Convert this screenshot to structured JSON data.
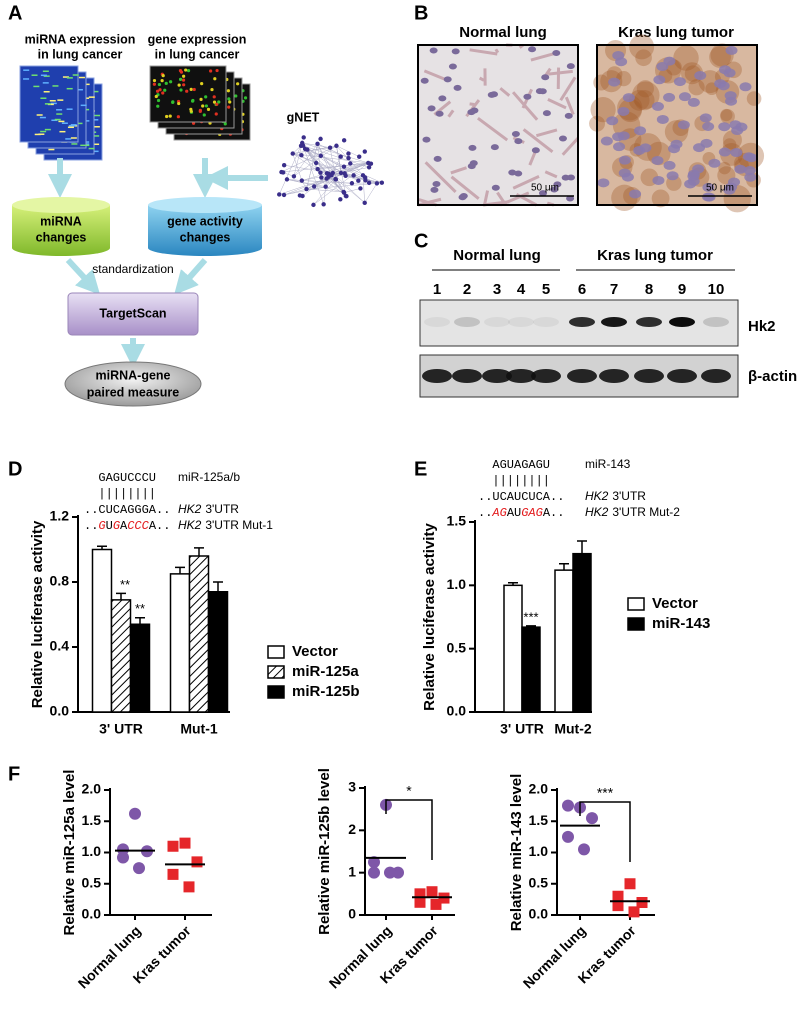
{
  "panels": [
    "A",
    "B",
    "C",
    "D",
    "E",
    "F"
  ],
  "diagram": {
    "mirna_data": [
      "miRNA expression",
      "in lung cancer"
    ],
    "gene_data": [
      "gene expression",
      "in lung cancer"
    ],
    "network": "gNET",
    "mirna_changes": [
      "miRNA",
      "changes"
    ],
    "gene_activity": [
      "gene activity",
      "changes"
    ],
    "step": "standardization",
    "tool": "TargetScan",
    "output": [
      "miRNA-gene",
      "paired measure"
    ]
  },
  "histology": {
    "normal": "Normal lung",
    "tumor": "Kras lung tumor",
    "scale_bar": "50 μm"
  },
  "blot": {
    "groups": [
      "Normal lung",
      "Kras lung tumor"
    ],
    "lanes": [
      "1",
      "2",
      "3",
      "4",
      "5",
      "6",
      "7",
      "8",
      "9",
      "10"
    ],
    "targets": [
      "Hk2",
      "β-actin"
    ]
  },
  "chart_data": [
    {
      "type": "bar",
      "alignment": {
        "mirna": "GAGUCCCU",
        "mirna_name": "miR-125a/b",
        "pairing": "||||||||",
        "utr": "..CUCAGGGA..",
        "gene": "HK2",
        "utr_name": "3'UTR",
        "mutant": [
          {
            "text": "..",
            "color": "#000000"
          },
          {
            "text": "G",
            "color": "#e31a1c"
          },
          {
            "text": "U",
            "color": "#000000"
          },
          {
            "text": "G",
            "color": "#e31a1c"
          },
          {
            "text": "A",
            "color": "#000000"
          },
          {
            "text": "CCC",
            "color": "#e31a1c"
          },
          {
            "text": "A..",
            "color": "#000000"
          }
        ],
        "mutant_name": "3'UTR Mut-1"
      },
      "y_label": "Relative luciferase activity",
      "categories": [
        "3' UTR",
        "Mut-1"
      ],
      "series": [
        {
          "name": "Vector",
          "fill": "#ffffff",
          "values": [
            1.0,
            0.85
          ],
          "errors": [
            0.02,
            0.04
          ],
          "significance": [
            null,
            null
          ]
        },
        {
          "name": "miR-125a",
          "fill": "hatch",
          "values": [
            0.69,
            0.96
          ],
          "errors": [
            0.04,
            0.05
          ],
          "significance": [
            "**",
            null
          ]
        },
        {
          "name": "miR-125b",
          "fill": "#000000",
          "values": [
            0.54,
            0.74
          ],
          "errors": [
            0.04,
            0.06
          ],
          "significance": [
            "**",
            null
          ]
        }
      ],
      "ylim": [
        0,
        1.2
      ],
      "yticks": [
        {
          "value": 0,
          "label": "0.0"
        },
        0.4,
        0.8,
        1.2
      ]
    },
    {
      "type": "bar",
      "alignment": {
        "mirna": "AGUAGAGU",
        "mirna_name": "miR-143",
        "pairing": "||||||||",
        "utr": "..UCAUCUCA..",
        "gene": "HK2",
        "utr_name": "3'UTR",
        "mutant": [
          {
            "text": "..",
            "color": "#000000"
          },
          {
            "text": "AG",
            "color": "#e31a1c"
          },
          {
            "text": "AU",
            "color": "#000000"
          },
          {
            "text": "GAG",
            "color": "#e31a1c"
          },
          {
            "text": "A..",
            "color": "#000000"
          }
        ],
        "mutant_name": "3'UTR Mut-2"
      },
      "y_label": "Relative luciferase activity",
      "categories": [
        "3' UTR",
        "Mut-2"
      ],
      "series": [
        {
          "name": "Vector",
          "fill": "#ffffff",
          "values": [
            1.0,
            1.12
          ],
          "errors": [
            0.02,
            0.05
          ],
          "significance": [
            null,
            null
          ]
        },
        {
          "name": "miR-143",
          "fill": "#000000",
          "values": [
            0.67,
            1.25
          ],
          "errors": [
            0.01,
            0.1
          ],
          "significance": [
            "***",
            null
          ]
        }
      ],
      "ylim": [
        0,
        1.5
      ],
      "yticks": [
        {
          "value": 0,
          "label": "0.0"
        },
        0.5,
        {
          "value": 1,
          "label": "1.0"
        },
        1.5
      ]
    },
    {
      "type": "scatter",
      "y_label": "Relative miR-125a level",
      "categories": [
        "Normal lung",
        "Kras tumor"
      ],
      "values": [
        [
          1.62,
          1.05,
          1.02,
          0.92,
          0.75
        ],
        [
          1.15,
          1.1,
          0.85,
          0.65,
          0.45
        ]
      ],
      "means": [
        1.03,
        0.81
      ],
      "colors": [
        "#7e57a8",
        "#e5262a"
      ],
      "markers": [
        "circle",
        "square"
      ],
      "ylim": [
        0,
        2
      ],
      "yticks": [
        {
          "value": 0,
          "label": "0.0"
        },
        0.5,
        {
          "value": 1,
          "label": "1.0"
        },
        1.5,
        {
          "value": 2,
          "label": "2.0"
        }
      ]
    },
    {
      "type": "scatter",
      "y_label": "Relative miR-125b level",
      "categories": [
        "Normal lung",
        "Kras tumor"
      ],
      "values": [
        [
          2.6,
          1.25,
          1.0,
          1.0,
          1.0
        ],
        [
          0.55,
          0.5,
          0.4,
          0.3,
          0.25
        ]
      ],
      "means": [
        1.35,
        0.42
      ],
      "colors": [
        "#7e57a8",
        "#e5262a"
      ],
      "markers": [
        "circle",
        "square"
      ],
      "significance": "*",
      "ylim": [
        0,
        3
      ],
      "yticks": [
        0,
        1,
        2,
        3
      ]
    },
    {
      "type": "scatter",
      "y_label": "Relative miR-143 level",
      "categories": [
        "Normal lung",
        "Kras tumor"
      ],
      "values": [
        [
          1.72,
          1.75,
          1.55,
          1.25,
          1.05
        ],
        [
          0.5,
          0.3,
          0.2,
          0.15,
          0.05
        ]
      ],
      "means": [
        1.43,
        0.22
      ],
      "colors": [
        "#7e57a8",
        "#e5262a"
      ],
      "markers": [
        "circle",
        "square"
      ],
      "significance": "***",
      "ylim": [
        0,
        2
      ],
      "yticks": [
        {
          "value": 0,
          "label": "0.0"
        },
        0.5,
        {
          "value": 1,
          "label": "1.0"
        },
        1.5,
        {
          "value": 2,
          "label": "2.0"
        }
      ]
    }
  ]
}
